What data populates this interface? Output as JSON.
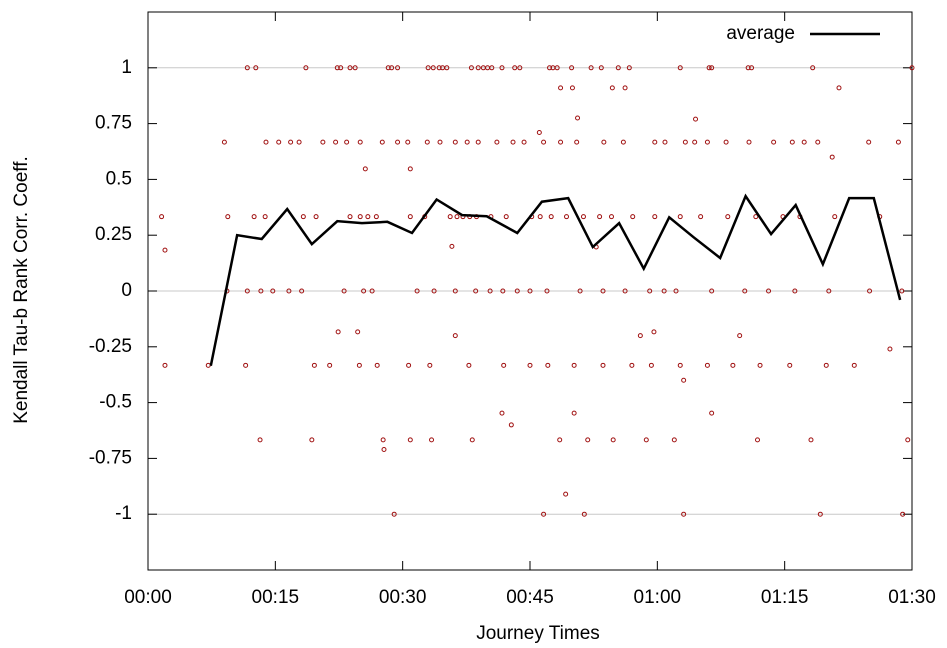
{
  "chart_data": {
    "type": "scatter",
    "xlabel": "Journey Times",
    "ylabel": "Kendall Tau-b Rank Corr. Coeff.",
    "xlim": [
      0,
      90
    ],
    "ylim": [
      -1.25,
      1.25
    ],
    "xticks": [
      {
        "value": 0,
        "label": "00:00"
      },
      {
        "value": 15,
        "label": "00:15"
      },
      {
        "value": 30,
        "label": "00:30"
      },
      {
        "value": 45,
        "label": "00:45"
      },
      {
        "value": 60,
        "label": "01:00"
      },
      {
        "value": 75,
        "label": "01:15"
      },
      {
        "value": 90,
        "label": "01:30"
      }
    ],
    "yticks": [
      -1,
      -0.75,
      -0.5,
      -0.25,
      0,
      0.25,
      0.5,
      0.75,
      1
    ],
    "grid_lines": [
      -1,
      0,
      1
    ],
    "legend": "top-right",
    "series": [
      {
        "type": "scatter",
        "color": "#a01010",
        "x": [
          11.7,
          12.7,
          18.6,
          22.3,
          22.7,
          23.8,
          24.4,
          28.3,
          28.7,
          29.4,
          33.0,
          33.6,
          34.3,
          34.7,
          35.2,
          38.1,
          38.9,
          39.5,
          40.0,
          40.5,
          41.7,
          43.2,
          43.8,
          47.3,
          47.7,
          48.2,
          49.9,
          52.2,
          53.4,
          55.4,
          56.7,
          62.7,
          66.1,
          66.4,
          70.7,
          71.1,
          78.3,
          90.0,
          9.0,
          13.9,
          15.4,
          16.8,
          17.8,
          20.6,
          22.1,
          23.4,
          25.0,
          27.6,
          29.4,
          30.6,
          32.9,
          34.4,
          36.2,
          37.6,
          38.9,
          41.1,
          43.0,
          44.3,
          46.6,
          48.6,
          50.5,
          53.7,
          56.0,
          59.7,
          60.9,
          63.3,
          64.4,
          65.9,
          68.1,
          70.8,
          73.7,
          75.9,
          77.3,
          78.9,
          84.9,
          88.4,
          1.6,
          9.4,
          12.5,
          13.8,
          18.3,
          19.8,
          23.8,
          25.0,
          25.9,
          26.9,
          30.9,
          32.6,
          35.6,
          36.4,
          37.1,
          37.9,
          38.7,
          40.4,
          42.2,
          45.2,
          46.2,
          47.5,
          49.3,
          51.3,
          53.2,
          54.6,
          57.1,
          59.7,
          62.7,
          65.1,
          68.3,
          71.6,
          74.8,
          76.8,
          80.9,
          86.2,
          9.3,
          11.7,
          13.3,
          14.7,
          16.6,
          18.1,
          23.1,
          25.4,
          26.4,
          31.7,
          33.7,
          36.2,
          38.6,
          40.3,
          41.8,
          43.5,
          45.0,
          47.0,
          50.9,
          53.6,
          56.2,
          59.1,
          60.8,
          62.2,
          66.4,
          70.3,
          73.1,
          76.2,
          80.2,
          85.0,
          88.8,
          2.0,
          7.1,
          11.5,
          19.6,
          21.4,
          24.9,
          27.0,
          30.7,
          33.2,
          37.8,
          41.9,
          45.0,
          47.1,
          50.2,
          53.6,
          57.0,
          59.3,
          62.7,
          65.9,
          68.9,
          72.1,
          75.6,
          79.9,
          83.2,
          13.2,
          19.3,
          27.7,
          30.9,
          33.4,
          38.2,
          48.5,
          51.8,
          54.8,
          58.7,
          62.0,
          71.8,
          78.1,
          89.5,
          29.0,
          46.6,
          51.4,
          63.1,
          79.2,
          88.9,
          2.0,
          35.8,
          25.6,
          30.9,
          46.1,
          50.6,
          48.6,
          50.0,
          54.7,
          56.2,
          64.5,
          81.4,
          80.6,
          22.4,
          24.7,
          36.2,
          41.7,
          42.8,
          27.8,
          50.2,
          49.2,
          63.1,
          66.4,
          69.7,
          87.4,
          52.8,
          58.0,
          59.6
        ],
        "values": [
          1,
          1,
          1,
          1,
          1,
          1,
          1,
          1,
          1,
          1,
          1,
          1,
          1,
          1,
          1,
          1,
          1,
          1,
          1,
          1,
          1,
          1,
          1,
          1,
          1,
          1,
          1,
          1,
          1,
          1,
          1,
          1,
          1,
          1,
          1,
          1,
          1,
          1,
          0.667,
          0.667,
          0.667,
          0.667,
          0.667,
          0.667,
          0.667,
          0.667,
          0.667,
          0.667,
          0.667,
          0.667,
          0.667,
          0.667,
          0.667,
          0.667,
          0.667,
          0.667,
          0.667,
          0.667,
          0.667,
          0.667,
          0.667,
          0.667,
          0.667,
          0.667,
          0.667,
          0.667,
          0.667,
          0.667,
          0.667,
          0.667,
          0.667,
          0.667,
          0.667,
          0.667,
          0.667,
          0.667,
          0.333,
          0.333,
          0.333,
          0.333,
          0.333,
          0.333,
          0.333,
          0.333,
          0.333,
          0.333,
          0.333,
          0.333,
          0.333,
          0.333,
          0.333,
          0.333,
          0.333,
          0.333,
          0.333,
          0.333,
          0.333,
          0.333,
          0.333,
          0.333,
          0.333,
          0.333,
          0.333,
          0.333,
          0.333,
          0.333,
          0.333,
          0.333,
          0.333,
          0.333,
          0.333,
          0.333,
          0,
          0,
          0,
          0,
          0,
          0,
          0,
          0,
          0,
          0,
          0,
          0,
          0,
          0,
          0,
          0,
          0,
          0,
          0,
          0,
          0,
          0,
          0,
          0,
          0,
          0,
          0,
          0,
          0,
          0,
          0,
          -0.333,
          -0.333,
          -0.333,
          -0.333,
          -0.333,
          -0.333,
          -0.333,
          -0.333,
          -0.333,
          -0.333,
          -0.333,
          -0.333,
          -0.333,
          -0.333,
          -0.333,
          -0.333,
          -0.333,
          -0.333,
          -0.333,
          -0.333,
          -0.333,
          -0.333,
          -0.333,
          -0.333,
          -0.667,
          -0.667,
          -0.667,
          -0.667,
          -0.667,
          -0.667,
          -0.667,
          -0.667,
          -0.667,
          -0.667,
          -0.667,
          -0.667,
          -0.667,
          -0.667,
          -1,
          -1,
          -1,
          -1,
          -1,
          -1,
          0.183,
          0.2,
          0.547,
          0.547,
          0.71,
          0.775,
          0.91,
          0.91,
          0.91,
          0.91,
          0.77,
          0.91,
          0.6,
          -0.183,
          -0.183,
          -0.2,
          -0.547,
          -0.6,
          -0.71,
          -0.547,
          -0.91,
          -0.4,
          -0.547,
          -0.2,
          -0.26,
          0.197,
          -0.2,
          -0.183
        ]
      },
      {
        "type": "line",
        "name": "average",
        "color": "#000000",
        "x": [
          7.4,
          10.5,
          13.4,
          16.4,
          19.3,
          22.3,
          25.2,
          28.2,
          31.1,
          34.0,
          37.0,
          39.9,
          43.5,
          46.4,
          49.5,
          52.4,
          55.5,
          58.4,
          61.4,
          64.3,
          67.4,
          70.4,
          73.4,
          76.3,
          79.5,
          82.6,
          85.5,
          88.6
        ],
        "values": [
          -0.335,
          0.25,
          0.233,
          0.367,
          0.21,
          0.313,
          0.304,
          0.31,
          0.26,
          0.41,
          0.34,
          0.335,
          0.26,
          0.4,
          0.416,
          0.197,
          0.304,
          0.1,
          0.33,
          0.24,
          0.148,
          0.425,
          0.255,
          0.385,
          0.12,
          0.416,
          0.416,
          -0.04
        ]
      }
    ]
  }
}
